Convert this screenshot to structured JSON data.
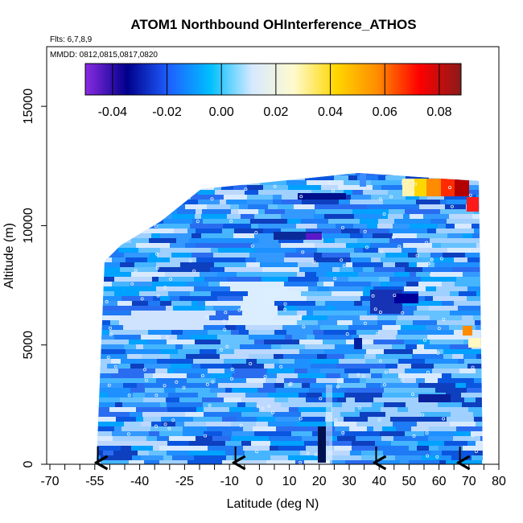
{
  "chart_data": {
    "type": "heatmap",
    "title": "ATOM1 Northbound OHInterference_ATHOS",
    "flights_label": "Flts: 6,7,8,9",
    "dates_label": "MMDD: 0812,0815,0817,0820",
    "xlabel": "Latitude (deg N)",
    "ylabel": "Altitude (m)",
    "xlim": [
      -70,
      80
    ],
    "ylim": [
      0,
      17500
    ],
    "x_ticks": [
      "-70",
      "-55",
      "-40",
      "-25",
      "-10",
      "0",
      "10",
      "20",
      "30",
      "40",
      "50",
      "60",
      "70",
      "80"
    ],
    "y_ticks": [
      "0",
      "5000",
      "10000",
      "15000"
    ],
    "y_tick_values": [
      0,
      5000,
      10000,
      15000
    ],
    "colorbar": {
      "ticks": [
        "-0.04",
        "-0.02",
        "0.00",
        "0.02",
        "0.04",
        "0.06",
        "0.08"
      ],
      "tick_values": [
        -0.04,
        -0.02,
        0.0,
        0.02,
        0.04,
        0.06,
        0.08
      ],
      "range": [
        -0.05,
        0.088
      ],
      "colors": [
        "#8a2be2",
        "#00008b",
        "#1e5fff",
        "#00bfff",
        "#d7e9ff",
        "#fffacd",
        "#ffd700",
        "#ff8c00",
        "#ff0000",
        "#8b1a1a"
      ]
    },
    "arrows_latitude": [
      -54,
      -8,
      39,
      67
    ],
    "fill_color": "#2f9ef8"
  }
}
